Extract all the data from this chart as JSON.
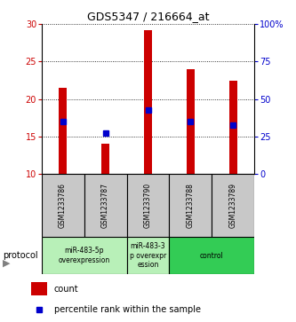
{
  "title": "GDS5347 / 216664_at",
  "samples": [
    "GSM1233786",
    "GSM1233787",
    "GSM1233790",
    "GSM1233788",
    "GSM1233789"
  ],
  "bar_values": [
    21.5,
    14.0,
    29.2,
    24.0,
    22.5
  ],
  "percentile_values": [
    17.0,
    15.5,
    18.5,
    17.0,
    16.5
  ],
  "bar_bottom": 10,
  "ylim_left": [
    10,
    30
  ],
  "ylim_right": [
    0,
    100
  ],
  "yticks_left": [
    10,
    15,
    20,
    25,
    30
  ],
  "yticks_right": [
    0,
    25,
    50,
    75,
    100
  ],
  "ytick_labels_right": [
    "0",
    "25",
    "50",
    "75",
    "100%"
  ],
  "bar_color": "#cc0000",
  "percentile_color": "#0000cc",
  "bg_color": "#ffffff",
  "protocol_groups": [
    {
      "label": "miR-483-5p\noverexpression",
      "indices": [
        0,
        1
      ],
      "color": "#b8f0b8"
    },
    {
      "label": "miR-483-3\np overexpr\nession",
      "indices": [
        2
      ],
      "color": "#b8f0b8"
    },
    {
      "label": "control",
      "indices": [
        3,
        4
      ],
      "color": "#33cc55"
    }
  ],
  "sample_area_color": "#c8c8c8",
  "left_axis_color": "#cc0000",
  "right_axis_color": "#0000cc",
  "bar_width": 0.18,
  "marker_size": 4
}
